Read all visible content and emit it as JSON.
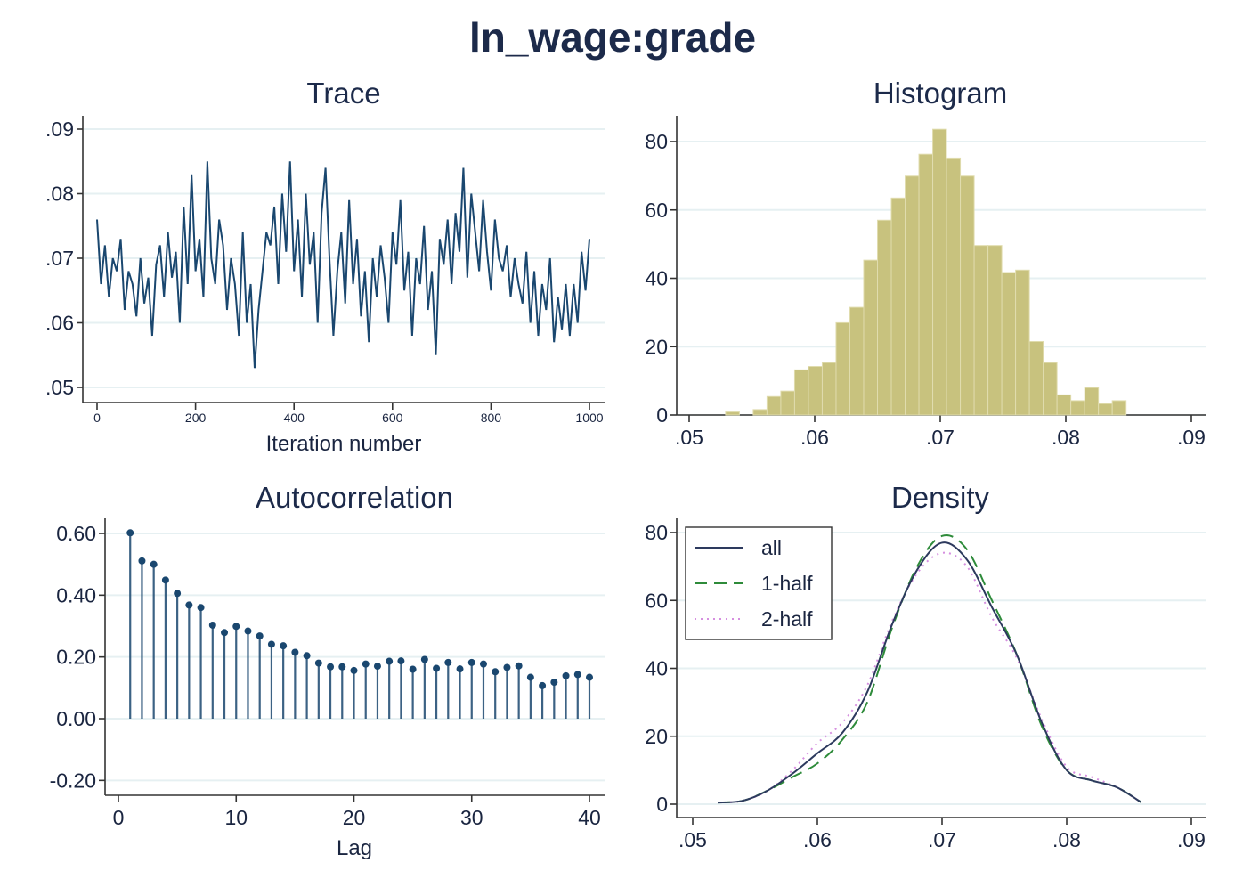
{
  "title": "ln_wage:grade",
  "colors": {
    "trace": "#1a476f",
    "bars": "#c8c27e",
    "bar_edge": "#e0dcae",
    "acf": "#1a476f",
    "all": "#2d3a5e",
    "half1": "#2e8b3a",
    "half2": "#d68fe0",
    "title": "#1c2a4a"
  },
  "chart_data": [
    {
      "type": "line",
      "title": "Trace",
      "xlabel": "Iteration number",
      "ylabel": "",
      "xlim": [
        0,
        1000
      ],
      "ylim": [
        0.05,
        0.09
      ],
      "xticks": [
        0,
        200,
        400,
        600,
        800,
        1000
      ],
      "xtick_labels": [
        "0",
        "200",
        "400",
        "600",
        "800",
        "1000"
      ],
      "yticks": [
        0.05,
        0.06,
        0.07,
        0.08,
        0.09
      ],
      "ytick_labels": [
        ".05",
        ".06",
        ".07",
        ".08",
        ".09"
      ],
      "grid": true,
      "x_step": 8,
      "values": [
        0.076,
        0.066,
        0.072,
        0.064,
        0.07,
        0.068,
        0.073,
        0.062,
        0.068,
        0.066,
        0.061,
        0.07,
        0.063,
        0.067,
        0.058,
        0.069,
        0.072,
        0.064,
        0.074,
        0.067,
        0.071,
        0.06,
        0.078,
        0.066,
        0.083,
        0.068,
        0.073,
        0.064,
        0.085,
        0.07,
        0.066,
        0.076,
        0.072,
        0.062,
        0.07,
        0.066,
        0.058,
        0.074,
        0.06,
        0.066,
        0.053,
        0.062,
        0.068,
        0.074,
        0.072,
        0.078,
        0.066,
        0.08,
        0.071,
        0.085,
        0.068,
        0.076,
        0.064,
        0.08,
        0.069,
        0.074,
        0.06,
        0.077,
        0.084,
        0.07,
        0.058,
        0.068,
        0.074,
        0.063,
        0.079,
        0.066,
        0.073,
        0.061,
        0.068,
        0.057,
        0.07,
        0.064,
        0.072,
        0.067,
        0.06,
        0.074,
        0.069,
        0.079,
        0.065,
        0.071,
        0.058,
        0.07,
        0.066,
        0.075,
        0.062,
        0.068,
        0.055,
        0.073,
        0.069,
        0.076,
        0.066,
        0.077,
        0.071,
        0.084,
        0.067,
        0.08,
        0.074,
        0.068,
        0.079,
        0.071,
        0.065,
        0.076,
        0.07,
        0.068,
        0.072,
        0.064,
        0.07,
        0.066,
        0.063,
        0.071,
        0.06,
        0.068,
        0.058,
        0.066,
        0.062,
        0.07,
        0.057,
        0.064,
        0.059,
        0.066,
        0.058,
        0.066,
        0.06,
        0.071,
        0.065,
        0.073
      ]
    },
    {
      "type": "bar",
      "title": "Histogram",
      "xlim": [
        0.05,
        0.09
      ],
      "ylim": [
        0,
        85
      ],
      "xticks": [
        0.05,
        0.06,
        0.07,
        0.08,
        0.09
      ],
      "xtick_labels": [
        ".05",
        ".06",
        ".07",
        ".08",
        ".09"
      ],
      "yticks": [
        0,
        20,
        40,
        60,
        80
      ],
      "ytick_labels": [
        "0",
        "20",
        "40",
        "60",
        "80"
      ],
      "grid": true,
      "bin_start": 0.0529,
      "bin_width": 0.0011,
      "values": [
        0.9,
        0,
        1.6,
        5.4,
        7.0,
        13.2,
        14.2,
        15.3,
        27.0,
        31.5,
        45.3,
        57.0,
        63.5,
        69.9,
        76.3,
        83.6,
        75.2,
        69.9,
        49.6,
        49.6,
        41.7,
        42.4,
        21.5,
        15.3,
        5.9,
        4.2,
        8.0,
        3.3,
        4.2
      ]
    },
    {
      "type": "stem",
      "title": "Autocorrelation",
      "xlabel": "Lag",
      "xlim": [
        0,
        40
      ],
      "ylim": [
        -0.2,
        0.6
      ],
      "xticks": [
        0,
        10,
        20,
        30,
        40
      ],
      "xtick_labels": [
        "0",
        "10",
        "20",
        "30",
        "40"
      ],
      "yticks": [
        -0.2,
        0,
        0.2,
        0.4,
        0.6
      ],
      "ytick_labels": [
        "-0.20",
        "0.00",
        "0.20",
        "0.40",
        "0.60"
      ],
      "grid": true,
      "lags": [
        1,
        2,
        3,
        4,
        5,
        6,
        7,
        8,
        9,
        10,
        11,
        12,
        13,
        14,
        15,
        16,
        17,
        18,
        19,
        20,
        21,
        22,
        23,
        24,
        25,
        26,
        27,
        28,
        29,
        30,
        31,
        32,
        33,
        34,
        35,
        36,
        37,
        38,
        39,
        40
      ],
      "values": [
        0.602,
        0.511,
        0.5,
        0.449,
        0.406,
        0.368,
        0.36,
        0.303,
        0.279,
        0.299,
        0.284,
        0.268,
        0.241,
        0.236,
        0.215,
        0.204,
        0.18,
        0.168,
        0.168,
        0.156,
        0.177,
        0.17,
        0.186,
        0.187,
        0.16,
        0.192,
        0.163,
        0.182,
        0.161,
        0.182,
        0.177,
        0.152,
        0.166,
        0.171,
        0.134,
        0.107,
        0.118,
        0.139,
        0.143,
        0.134
      ]
    },
    {
      "type": "line",
      "title": "Density",
      "xlim": [
        0.05,
        0.09
      ],
      "ylim": [
        0,
        85
      ],
      "xticks": [
        0.05,
        0.06,
        0.07,
        0.08,
        0.09
      ],
      "xtick_labels": [
        ".05",
        ".06",
        ".07",
        ".08",
        ".09"
      ],
      "yticks": [
        0,
        20,
        40,
        60,
        80
      ],
      "ytick_labels": [
        "0",
        "20",
        "40",
        "60",
        "80"
      ],
      "grid": true,
      "legend": "top-left",
      "x": [
        0.052,
        0.054,
        0.056,
        0.058,
        0.06,
        0.062,
        0.064,
        0.066,
        0.068,
        0.07,
        0.072,
        0.074,
        0.076,
        0.078,
        0.08,
        0.082,
        0.084,
        0.086
      ],
      "series": [
        {
          "name": "all",
          "style": "solid",
          "values": [
            0.5,
            1,
            4,
            9,
            15,
            21,
            33,
            53,
            69,
            77,
            72,
            58,
            44,
            24,
            10,
            7,
            5,
            0.5
          ]
        },
        {
          "name": "1-half",
          "style": "dashed",
          "values": [
            0.5,
            1,
            4,
            8,
            12,
            19,
            30,
            52,
            70,
            79,
            75,
            60,
            44,
            23,
            10,
            7,
            5,
            0.5
          ]
        },
        {
          "name": "2-half",
          "style": "dotted",
          "values": [
            0.5,
            1,
            4,
            10,
            18,
            24,
            35,
            54,
            68,
            74,
            70,
            55,
            43,
            25,
            11,
            8,
            5,
            0.5
          ]
        }
      ]
    }
  ]
}
